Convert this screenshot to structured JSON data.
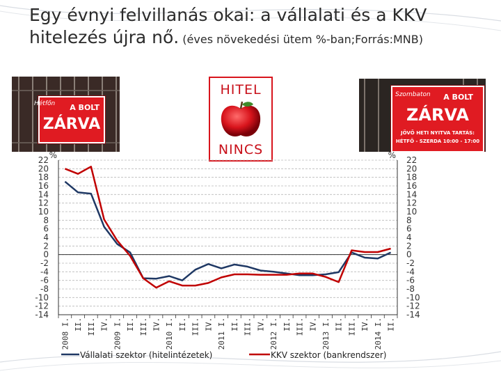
{
  "slide": {
    "title": "Egy évnyi felvillanás okai: a vállalati és a KKV hitelezés újra nő.",
    "subtitle": "(éves növekedési ütem %-ban;Forrás:MNB)"
  },
  "images": {
    "left_sign": {
      "text1": "A BOLT",
      "text2": "ZÁRVA",
      "script": "Hétfőn"
    },
    "center_sign": {
      "top": "HITEL",
      "bottom": "NINCS"
    },
    "right_sign": {
      "text1": "A BOLT",
      "text2": "ZÁRVA",
      "script": "Szombaton",
      "line1": "JÖVŐ HETI NYITVA TARTÁS:",
      "line2": "HÉTFŐ - SZERDA 10:00 - 17:00"
    }
  },
  "colors": {
    "series1": "#1f3864",
    "series2": "#c00000",
    "accent": "#c8101a"
  },
  "chart_data": {
    "type": "line",
    "ylabel_left": "%",
    "ylabel_right": "%",
    "ylim": [
      -14,
      22
    ],
    "yticks": [
      22,
      20,
      18,
      16,
      14,
      12,
      10,
      8,
      6,
      4,
      2,
      0,
      -2,
      -4,
      -6,
      -8,
      -10,
      -12,
      -14
    ],
    "x": [
      "2008 I.",
      "II.",
      "III.",
      "IV.",
      "2009 I.",
      "II.",
      "III.",
      "IV.",
      "2010 I.",
      "II.",
      "III.",
      "IV.",
      "2011 I.",
      "II.",
      "III.",
      "IV.",
      "2012 I.",
      "II.",
      "III.",
      "IV.",
      "2013 I.",
      "II.",
      "III.",
      "IV.",
      "2014 I.",
      "II."
    ],
    "grid": true,
    "legend": "bottom",
    "series": [
      {
        "name": "Vállalati szektor (hitelintézetek)",
        "values": [
          17.0,
          14.5,
          14.2,
          6.5,
          2.5,
          0.5,
          -5.5,
          -5.6,
          -5.0,
          -6.0,
          -3.5,
          -2.2,
          -3.2,
          -2.3,
          -2.8,
          -3.7,
          -4.0,
          -4.4,
          -4.8,
          -4.8,
          -4.6,
          -4.1,
          0.5,
          -0.7,
          -0.9,
          0.5
        ]
      },
      {
        "name": "KKV szektor (bankrendszer)",
        "values": [
          20.0,
          18.8,
          20.5,
          8.2,
          3.3,
          -0.3,
          -5.5,
          -7.7,
          -6.2,
          -7.2,
          -7.2,
          -6.6,
          -5.3,
          -4.6,
          -4.6,
          -4.7,
          -4.7,
          -4.7,
          -4.4,
          -4.4,
          -5.2,
          -6.4,
          1.0,
          0.6,
          0.6,
          1.4
        ]
      }
    ]
  }
}
